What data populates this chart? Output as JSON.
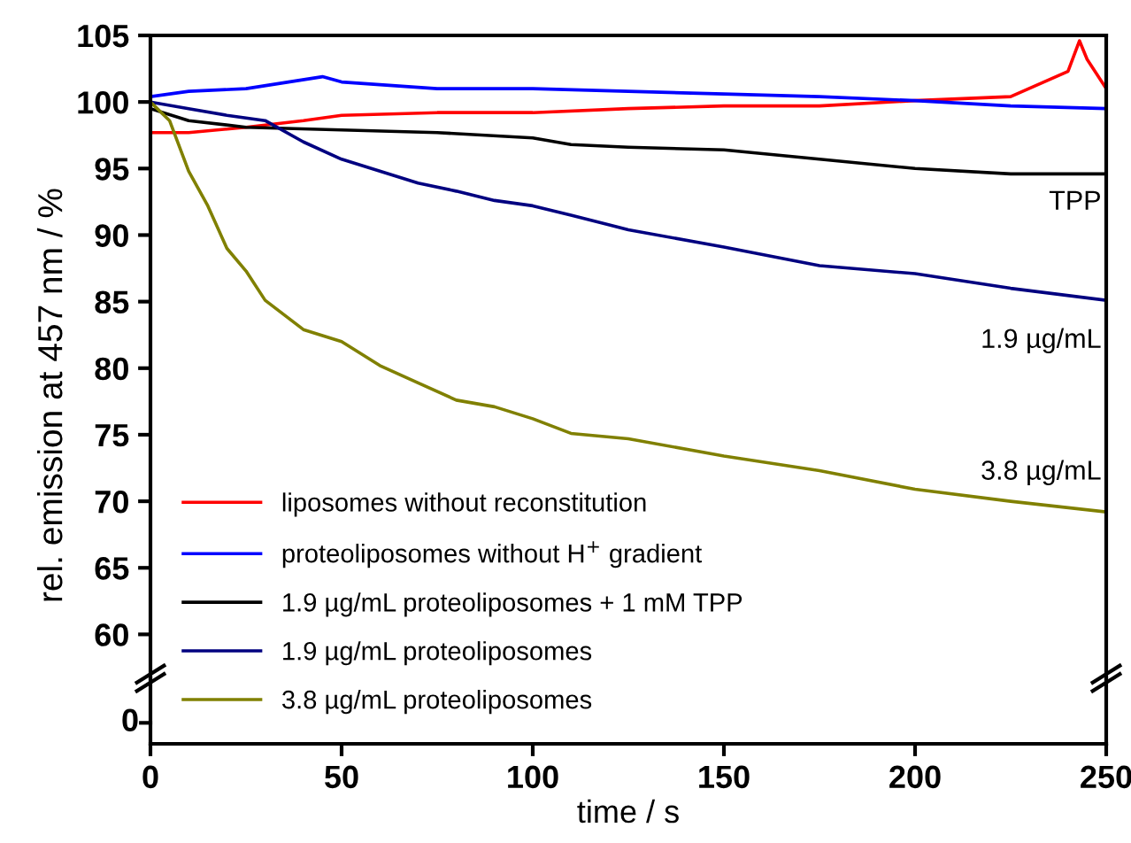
{
  "chart_data": {
    "type": "line",
    "ylabel": "rel. emission at 457 nm / %",
    "xlabel": "time / s",
    "xlim": [
      0,
      250
    ],
    "ylim": [
      56.7,
      105
    ],
    "yticks": [
      60,
      65,
      70,
      75,
      80,
      85,
      90,
      95,
      100,
      105
    ],
    "xticks": [
      0,
      50,
      100,
      150,
      200,
      250
    ],
    "legend": "bottom left",
    "line_style": "solid",
    "annotations": [
      "TPP",
      "1.9 µg/mL",
      "3.8 µg/mL",
      "0"
    ],
    "series": [
      {
        "name": "liposomes without reconstitution",
        "color": "#ff0000",
        "x": [
          0,
          10,
          25,
          40,
          50,
          75,
          100,
          125,
          150,
          175,
          200,
          225,
          240,
          243,
          245,
          250
        ],
        "values": [
          97.7,
          97.7,
          98.1,
          98.6,
          99.0,
          99.2,
          99.2,
          99.5,
          99.7,
          99.7,
          100.1,
          100.4,
          102.3,
          104.6,
          103.2,
          101.0
        ]
      },
      {
        "name": "proteoliposomes without H$^{+}$ gradient",
        "color": "#0000ff",
        "x": [
          0,
          10,
          25,
          45,
          50,
          75,
          100,
          125,
          150,
          175,
          200,
          225,
          250
        ],
        "values": [
          100.4,
          100.8,
          101.0,
          101.9,
          101.5,
          101.0,
          101.0,
          100.8,
          100.6,
          100.4,
          100.1,
          99.7,
          99.5
        ]
      },
      {
        "name": "1.9 µg/mL proteoliposomes + 1 mM TPP",
        "color": "#000000",
        "x": [
          0,
          10,
          25,
          50,
          75,
          100,
          110,
          125,
          150,
          175,
          200,
          225,
          250
        ],
        "values": [
          99.5,
          98.6,
          98.1,
          97.9,
          97.7,
          97.3,
          96.8,
          96.6,
          96.4,
          95.7,
          95.0,
          94.6,
          94.6
        ]
      },
      {
        "name": "1.9 µg/mL proteoliposomes",
        "color": "#000080",
        "x": [
          0,
          10,
          20,
          30,
          40,
          50,
          60,
          70,
          80,
          90,
          100,
          110,
          125,
          150,
          175,
          200,
          225,
          250
        ],
        "values": [
          100.0,
          99.5,
          99.0,
          98.6,
          97.0,
          95.7,
          94.8,
          93.9,
          93.3,
          92.6,
          92.2,
          91.5,
          90.4,
          89.1,
          87.7,
          87.1,
          86.0,
          85.1
        ]
      },
      {
        "name": "3.8 µg/mL proteoliposomes",
        "color": "#808000",
        "x": [
          0,
          5,
          10,
          15,
          20,
          25,
          30,
          40,
          50,
          60,
          70,
          80,
          90,
          100,
          110,
          125,
          150,
          175,
          200,
          225,
          250
        ],
        "values": [
          100.0,
          98.6,
          94.8,
          92.2,
          89.0,
          87.3,
          85.1,
          82.9,
          82.0,
          80.2,
          78.9,
          77.6,
          77.1,
          76.2,
          75.1,
          74.7,
          73.4,
          72.3,
          70.9,
          70.0,
          69.2
        ]
      }
    ]
  }
}
